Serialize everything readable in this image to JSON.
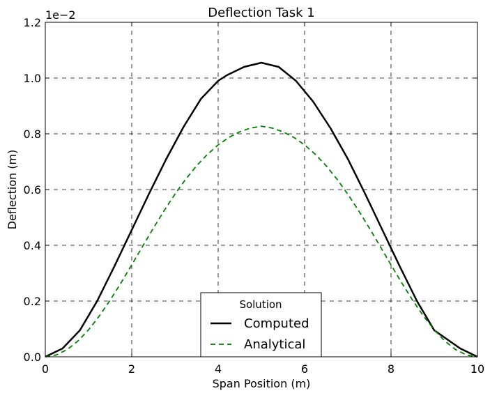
{
  "chart_data": {
    "type": "line",
    "title": "Deflection Task 1",
    "xlabel": "Span Position (m)",
    "ylabel": "Deflection (m)",
    "y_offset_text": "1e−2",
    "y_scale_exponent": -2,
    "xlim": [
      0,
      10
    ],
    "ylim": [
      0,
      1.2
    ],
    "x_ticks": [
      0,
      2,
      4,
      6,
      8,
      10
    ],
    "x_tick_labels": [
      "0",
      "2",
      "4",
      "6",
      "8",
      "10"
    ],
    "y_ticks": [
      0,
      0.2,
      0.4,
      0.6,
      0.8,
      1.0,
      1.2
    ],
    "y_tick_labels": [
      "0.0",
      "0.2",
      "0.4",
      "0.6",
      "0.8",
      "1.0",
      "1.2"
    ],
    "grid": true,
    "legend": {
      "title": "Solution",
      "placement": "lower-center"
    },
    "series": [
      {
        "name": "Computed",
        "color": "#000000",
        "style": "solid",
        "x": [
          0,
          0.4,
          0.8,
          1.2,
          1.6,
          2.0,
          2.4,
          2.8,
          3.2,
          3.6,
          4.0,
          4.2,
          4.6,
          5.0,
          5.4,
          5.8,
          6.2,
          6.6,
          7.0,
          7.4,
          7.8,
          8.2,
          8.6,
          9.0,
          9.6,
          10.0
        ],
        "y": [
          0.0,
          0.03,
          0.095,
          0.2,
          0.325,
          0.455,
          0.585,
          0.71,
          0.825,
          0.925,
          0.99,
          1.01,
          1.04,
          1.055,
          1.04,
          0.99,
          0.915,
          0.82,
          0.71,
          0.585,
          0.455,
          0.325,
          0.2,
          0.095,
          0.03,
          0.0
        ]
      },
      {
        "name": "Analytical",
        "color": "#008000",
        "style": "dashed",
        "x": [
          0,
          0.25,
          0.5,
          0.75,
          1.0,
          1.25,
          1.5,
          1.75,
          2.0,
          2.25,
          2.5,
          2.75,
          3.0,
          3.25,
          3.5,
          3.75,
          4.0,
          4.25,
          4.5,
          4.75,
          5.0,
          5.25,
          5.5,
          5.75,
          6.0,
          6.25,
          6.5,
          6.75,
          7.0,
          7.25,
          7.5,
          7.75,
          8.0,
          8.25,
          8.5,
          8.75,
          9.0,
          9.25,
          9.5,
          9.75,
          10.0
        ],
        "y": [
          0.0,
          0.0064,
          0.0253,
          0.0558,
          0.0966,
          0.1463,
          0.203,
          0.2648,
          0.3297,
          0.3959,
          0.4613,
          0.5243,
          0.5834,
          0.6373,
          0.6851,
          0.7261,
          0.7602,
          0.7871,
          0.8072,
          0.8206,
          0.8273,
          0.8206,
          0.8072,
          0.7871,
          0.7602,
          0.7261,
          0.6851,
          0.6373,
          0.5834,
          0.5243,
          0.4613,
          0.3959,
          0.3297,
          0.2648,
          0.203,
          0.1463,
          0.0966,
          0.0558,
          0.0253,
          0.0064,
          0.0
        ]
      }
    ]
  }
}
